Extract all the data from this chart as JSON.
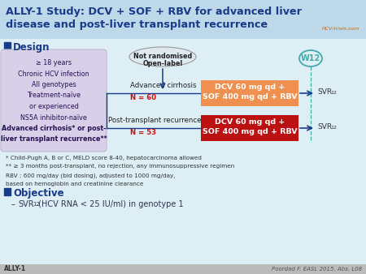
{
  "title_line1": "ALLY-1 Study: DCV + SOF + RBV for advanced liver",
  "title_line2": "disease and post-liver transplant recurrence",
  "title_color": "#1a3a8a",
  "bg_color": "#ddeef5",
  "header_bg": "#bdd8e8",
  "design_label": "Design",
  "section_color": "#1a3a8a",
  "criteria_lines": [
    "≥ 18 years",
    "Chronic HCV infection",
    "All genotypes",
    "Treatment-naïve",
    "or experienced",
    "NS5A inhibitor-naïve",
    "Advanced cirrhosis* or post-",
    "liver transplant recurrence**"
  ],
  "arm1_label": "Advanced cirrhosis",
  "arm1_n": "N = 60",
  "arm2_label": "Post-transplant recurrence",
  "arm2_n": "N = 53",
  "drug_text": "DCV 60 mg qd +\nSOF 400 mg qd + RBV",
  "arm1_box_color": "#f09050",
  "arm2_box_color": "#bb1111",
  "w12_label": "W12",
  "w12_circle_color": "#44aaaa",
  "footnote1": "* Child-Pugh A, B or C, MELD score 8-40, hepatocarcinoma allowed",
  "footnote2": "** ≥ 3 months post-transplant, no rejection, any immunosuppressive regimen",
  "footnote3": "RBV : 600 mg/day (bid dosing), adjusted to 1000 mg/day,",
  "footnote4": "based on hemoglobin and creatinine clearance",
  "objective_label": "Objective",
  "footer_left": "ALLY-1",
  "footer_right": "Poordad F. EASL 2015. Abs. L08",
  "arrow_color": "#1a3a8a",
  "svr_color": "#333333",
  "not_rand_ellipse_color": "#cccccc"
}
